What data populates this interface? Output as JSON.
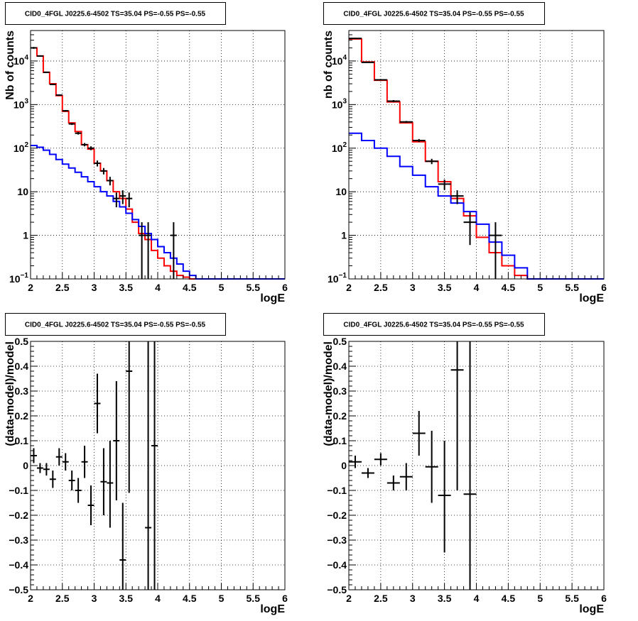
{
  "chart_data": [
    {
      "type": "step-histogram",
      "title": "CID0_4FGL J0225.6-4502 TS=35.04 PS=-0.55 PS=-0.55",
      "xlabel": "logE",
      "ylabel": "Nb of counts",
      "xlim": [
        2,
        6
      ],
      "ylim": [
        0.1,
        50000
      ],
      "yscale": "log",
      "grid": true,
      "x_ticks": [
        "2",
        "2.5",
        "3",
        "3.5",
        "4",
        "4.5",
        "5",
        "5.5",
        "6"
      ],
      "y_ticks": [
        {
          "value": 0.1,
          "base": "10",
          "exp": "−1"
        },
        {
          "value": 1,
          "label": "1"
        },
        {
          "value": 10,
          "label": "10"
        },
        {
          "value": 100,
          "base": "10",
          "exp": "2"
        },
        {
          "value": 1000,
          "base": "10",
          "exp": "3"
        },
        {
          "value": 10000,
          "base": "10",
          "exp": "4"
        }
      ],
      "bin_edges": [
        2.0,
        2.1,
        2.2,
        2.3,
        2.4,
        2.5,
        2.6,
        2.7,
        2.8,
        2.9,
        3.0,
        3.1,
        3.2,
        3.3,
        3.4,
        3.5,
        3.6,
        3.7,
        3.8,
        3.9,
        4.0,
        4.1,
        4.2,
        4.3,
        4.4,
        4.5,
        4.6,
        4.7,
        4.8,
        4.9,
        5.0,
        5.1,
        5.2,
        5.3,
        5.4,
        5.5,
        5.6,
        5.7,
        5.8,
        5.9,
        6.0
      ],
      "series": [
        {
          "color": "#ff0000",
          "values": [
            20000,
            13000,
            5500,
            3000,
            1600,
            700,
            380,
            240,
            120,
            95,
            45,
            30,
            18,
            10,
            7,
            4,
            2,
            1.1,
            0.8,
            0.45,
            0.3,
            0.2,
            0.15,
            0.12,
            0.11,
            0.1,
            0.1,
            0.1,
            0.1,
            0.1,
            0.1,
            0.1,
            0.1,
            0.1,
            0.1,
            0.1,
            0.1,
            0.1,
            0.1,
            0.1
          ]
        },
        {
          "color": "#0000ff",
          "values": [
            115,
            105,
            90,
            72,
            55,
            43,
            35,
            28,
            22,
            17,
            13,
            10,
            8,
            6,
            4.5,
            3.2,
            2.3,
            1.6,
            1.1,
            0.8,
            0.55,
            0.4,
            0.3,
            0.22,
            0.15,
            0.12,
            0.1,
            0.1,
            0.1,
            0.1,
            0.1,
            0.1,
            0.1,
            0.1,
            0.1,
            0.1,
            0.1,
            0.1,
            0.1,
            0.1
          ]
        }
      ],
      "points": [
        {
          "x": 2.05,
          "y": 20000,
          "xerr": 0.05,
          "ylo": 19000,
          "yhi": 21000
        },
        {
          "x": 2.15,
          "y": 13000,
          "xerr": 0.05,
          "ylo": 12500,
          "yhi": 13500
        },
        {
          "x": 2.25,
          "y": 5500,
          "xerr": 0.05,
          "ylo": 5300,
          "yhi": 5700
        },
        {
          "x": 2.35,
          "y": 2900,
          "xerr": 0.05,
          "ylo": 2800,
          "yhi": 3000
        },
        {
          "x": 2.45,
          "y": 1650,
          "xerr": 0.05,
          "ylo": 1580,
          "yhi": 1720
        },
        {
          "x": 2.55,
          "y": 720,
          "xerr": 0.05,
          "ylo": 690,
          "yhi": 750
        },
        {
          "x": 2.65,
          "y": 360,
          "xerr": 0.05,
          "ylo": 340,
          "yhi": 380
        },
        {
          "x": 2.75,
          "y": 220,
          "xerr": 0.05,
          "ylo": 205,
          "yhi": 235
        },
        {
          "x": 2.85,
          "y": 120,
          "xerr": 0.05,
          "ylo": 110,
          "yhi": 131
        },
        {
          "x": 2.95,
          "y": 100,
          "xerr": 0.05,
          "ylo": 90,
          "yhi": 110
        },
        {
          "x": 3.05,
          "y": 45,
          "xerr": 0.05,
          "ylo": 38,
          "yhi": 52
        },
        {
          "x": 3.15,
          "y": 30,
          "xerr": 0.05,
          "ylo": 25,
          "yhi": 35
        },
        {
          "x": 3.25,
          "y": 18,
          "xerr": 0.05,
          "ylo": 14,
          "yhi": 22
        },
        {
          "x": 3.35,
          "y": 7,
          "xerr": 0.05,
          "ylo": 4.4,
          "yhi": 9.6
        },
        {
          "x": 3.45,
          "y": 8,
          "xerr": 0.05,
          "ylo": 5.2,
          "yhi": 10.8
        },
        {
          "x": 3.55,
          "y": 7,
          "xerr": 0.05,
          "ylo": 4.4,
          "yhi": 9.6
        },
        {
          "x": 3.75,
          "y": 1,
          "xerr": 0.05,
          "ylo": 0.1,
          "yhi": 2
        },
        {
          "x": 3.85,
          "y": 1,
          "xerr": 0.05,
          "ylo": 0.1,
          "yhi": 2
        },
        {
          "x": 4.25,
          "y": 1,
          "xerr": 0.05,
          "ylo": 0.1,
          "yhi": 2
        }
      ]
    },
    {
      "type": "step-histogram",
      "title": "CID0_4FGL J0225.6-4502 TS=35.04 PS=-0.55 PS=-0.55",
      "xlabel": "logE",
      "ylabel": "nb of counts",
      "xlim": [
        2,
        6
      ],
      "ylim": [
        0.1,
        50000
      ],
      "yscale": "log",
      "grid": true,
      "x_ticks": [
        "2",
        "2.5",
        "3",
        "3.5",
        "4",
        "4.5",
        "5",
        "5.5",
        "6"
      ],
      "y_ticks": [
        {
          "value": 0.1,
          "base": "10",
          "exp": "−1"
        },
        {
          "value": 1,
          "label": "1"
        },
        {
          "value": 10,
          "label": "10"
        },
        {
          "value": 100,
          "base": "10",
          "exp": "2"
        },
        {
          "value": 1000,
          "base": "10",
          "exp": "3"
        },
        {
          "value": 10000,
          "base": "10",
          "exp": "4"
        }
      ],
      "bin_edges": [
        2.0,
        2.2,
        2.4,
        2.6,
        2.8,
        3.0,
        3.2,
        3.4,
        3.6,
        3.8,
        4.0,
        4.2,
        4.4,
        4.6,
        4.8,
        5.0,
        5.2,
        5.4,
        5.6,
        5.8,
        6.0
      ],
      "series": [
        {
          "color": "#ff0000",
          "values": [
            32000,
            9500,
            3600,
            1150,
            380,
            140,
            50,
            17,
            7,
            2.8,
            0.9,
            0.4,
            0.2,
            0.12,
            0.1,
            0.1,
            0.1,
            0.1,
            0.1,
            0.1
          ]
        },
        {
          "color": "#0000ff",
          "values": [
            220,
            150,
            100,
            65,
            38,
            24,
            13,
            8,
            5.5,
            3.5,
            1.8,
            0.7,
            0.35,
            0.18,
            0.1,
            0.1,
            0.1,
            0.1,
            0.1,
            0.1
          ]
        }
      ],
      "points": [
        {
          "x": 2.1,
          "y": 33000,
          "xerr": 0.1,
          "ylo": 32000,
          "yhi": 34000
        },
        {
          "x": 2.3,
          "y": 9300,
          "xerr": 0.1,
          "ylo": 9100,
          "yhi": 9500
        },
        {
          "x": 2.5,
          "y": 3700,
          "xerr": 0.1,
          "ylo": 3600,
          "yhi": 3800
        },
        {
          "x": 2.7,
          "y": 1200,
          "xerr": 0.1,
          "ylo": 1130,
          "yhi": 1270
        },
        {
          "x": 2.9,
          "y": 400,
          "xerr": 0.1,
          "ylo": 380,
          "yhi": 420
        },
        {
          "x": 3.1,
          "y": 150,
          "xerr": 0.1,
          "ylo": 138,
          "yhi": 162
        },
        {
          "x": 3.3,
          "y": 50,
          "xerr": 0.1,
          "ylo": 43,
          "yhi": 57
        },
        {
          "x": 3.5,
          "y": 15,
          "xerr": 0.1,
          "ylo": 11,
          "yhi": 19
        },
        {
          "x": 3.7,
          "y": 8,
          "xerr": 0.1,
          "ylo": 5.2,
          "yhi": 10.8
        },
        {
          "x": 3.9,
          "y": 2,
          "xerr": 0.1,
          "ylo": 0.6,
          "yhi": 3.4
        },
        {
          "x": 4.3,
          "y": 1,
          "xerr": 0.1,
          "ylo": 0.1,
          "yhi": 2
        }
      ]
    },
    {
      "type": "scatter",
      "title": "CID0_4FGL J0225.6-4502 TS=35.04 PS=-0.55 PS=-0.55",
      "xlabel": "logE",
      "ylabel": "(data-model)/model",
      "xlim": [
        2,
        6
      ],
      "ylim": [
        -0.5,
        0.5
      ],
      "yscale": "linear",
      "grid": true,
      "x_ticks": [
        "2",
        "2.5",
        "3",
        "3.5",
        "4",
        "4.5",
        "5",
        "5.5",
        "6"
      ],
      "y_ticks": [
        {
          "value": -0.5,
          "label": "−0.5"
        },
        {
          "value": -0.4,
          "label": "−0.4"
        },
        {
          "value": -0.3,
          "label": "−0.3"
        },
        {
          "value": -0.2,
          "label": "−0.2"
        },
        {
          "value": -0.1,
          "label": "−0.1"
        },
        {
          "value": 0,
          "label": "0"
        },
        {
          "value": 0.1,
          "label": "0.1"
        },
        {
          "value": 0.2,
          "label": "0.2"
        },
        {
          "value": 0.3,
          "label": "0.3"
        },
        {
          "value": 0.4,
          "label": "0.4"
        },
        {
          "value": 0.5,
          "label": "0.5"
        }
      ],
      "points": [
        {
          "x": 2.05,
          "y": 0.04,
          "xerr": 0.05,
          "ylo": 0.01,
          "yhi": 0.07
        },
        {
          "x": 2.15,
          "y": -0.01,
          "xerr": 0.05,
          "ylo": -0.03,
          "yhi": 0.01
        },
        {
          "x": 2.25,
          "y": -0.015,
          "xerr": 0.05,
          "ylo": -0.04,
          "yhi": 0.01
        },
        {
          "x": 2.35,
          "y": -0.055,
          "xerr": 0.05,
          "ylo": -0.09,
          "yhi": -0.02
        },
        {
          "x": 2.45,
          "y": 0.035,
          "xerr": 0.05,
          "ylo": 0.0,
          "yhi": 0.07
        },
        {
          "x": 2.55,
          "y": 0.015,
          "xerr": 0.05,
          "ylo": -0.02,
          "yhi": 0.05
        },
        {
          "x": 2.65,
          "y": -0.06,
          "xerr": 0.05,
          "ylo": -0.1,
          "yhi": -0.02
        },
        {
          "x": 2.75,
          "y": -0.1,
          "xerr": 0.05,
          "ylo": -0.15,
          "yhi": -0.05
        },
        {
          "x": 2.85,
          "y": 0.015,
          "xerr": 0.05,
          "ylo": -0.05,
          "yhi": 0.08
        },
        {
          "x": 2.95,
          "y": -0.16,
          "xerr": 0.05,
          "ylo": -0.24,
          "yhi": -0.08
        },
        {
          "x": 3.05,
          "y": 0.25,
          "xerr": 0.05,
          "ylo": 0.13,
          "yhi": 0.37
        },
        {
          "x": 3.15,
          "y": -0.065,
          "xerr": 0.05,
          "ylo": -0.2,
          "yhi": 0.07
        },
        {
          "x": 3.25,
          "y": -0.07,
          "xerr": 0.05,
          "ylo": -0.25,
          "yhi": 0.1
        },
        {
          "x": 3.35,
          "y": 0.1,
          "xerr": 0.05,
          "ylo": -0.14,
          "yhi": 0.34
        },
        {
          "x": 3.45,
          "y": -0.38,
          "xerr": 0.05,
          "ylo": -0.5,
          "yhi": -0.15
        },
        {
          "x": 3.55,
          "y": 0.38,
          "xerr": 0.05,
          "ylo": -0.11,
          "yhi": 0.5
        },
        {
          "x": 3.85,
          "y": -0.25,
          "xerr": 0.05,
          "ylo": -0.5,
          "yhi": 0.5
        },
        {
          "x": 3.95,
          "y": 0.08,
          "xerr": 0.05,
          "ylo": -0.5,
          "yhi": 0.5
        }
      ]
    },
    {
      "type": "scatter",
      "title": "CID0_4FGL J0225.6-4502 TS=35.04 PS=-0.55 PS=-0.55",
      "xlabel": "logE",
      "ylabel": "(data-model)/model",
      "xlim": [
        2,
        6
      ],
      "ylim": [
        -0.5,
        0.5
      ],
      "yscale": "linear",
      "grid": true,
      "x_ticks": [
        "2",
        "2.5",
        "3",
        "3.5",
        "4",
        "4.5",
        "5",
        "5.5",
        "6"
      ],
      "y_ticks": [
        {
          "value": -0.5,
          "label": "−0.5"
        },
        {
          "value": -0.4,
          "label": "−0.4"
        },
        {
          "value": -0.3,
          "label": "−0.3"
        },
        {
          "value": -0.2,
          "label": "−0.2"
        },
        {
          "value": -0.1,
          "label": "−0.1"
        },
        {
          "value": 0,
          "label": "0"
        },
        {
          "value": 0.1,
          "label": "0.1"
        },
        {
          "value": 0.2,
          "label": "0.2"
        },
        {
          "value": 0.3,
          "label": "0.3"
        },
        {
          "value": 0.4,
          "label": "0.4"
        },
        {
          "value": 0.5,
          "label": "0.5"
        }
      ],
      "points": [
        {
          "x": 2.1,
          "y": 0.015,
          "xerr": 0.1,
          "ylo": -0.01,
          "yhi": 0.04
        },
        {
          "x": 2.3,
          "y": -0.03,
          "xerr": 0.1,
          "ylo": -0.05,
          "yhi": -0.01
        },
        {
          "x": 2.5,
          "y": 0.025,
          "xerr": 0.1,
          "ylo": 0.0,
          "yhi": 0.05
        },
        {
          "x": 2.7,
          "y": -0.07,
          "xerr": 0.1,
          "ylo": -0.1,
          "yhi": -0.04
        },
        {
          "x": 2.9,
          "y": -0.045,
          "xerr": 0.1,
          "ylo": -0.1,
          "yhi": 0.01
        },
        {
          "x": 3.1,
          "y": 0.13,
          "xerr": 0.1,
          "ylo": 0.04,
          "yhi": 0.22
        },
        {
          "x": 3.3,
          "y": -0.005,
          "xerr": 0.1,
          "ylo": -0.15,
          "yhi": 0.14
        },
        {
          "x": 3.5,
          "y": -0.12,
          "xerr": 0.1,
          "ylo": -0.35,
          "yhi": 0.1
        },
        {
          "x": 3.7,
          "y": 0.385,
          "xerr": 0.1,
          "ylo": -0.1,
          "yhi": 0.5
        },
        {
          "x": 3.9,
          "y": -0.115,
          "xerr": 0.1,
          "ylo": -0.5,
          "yhi": 0.5
        }
      ]
    }
  ]
}
